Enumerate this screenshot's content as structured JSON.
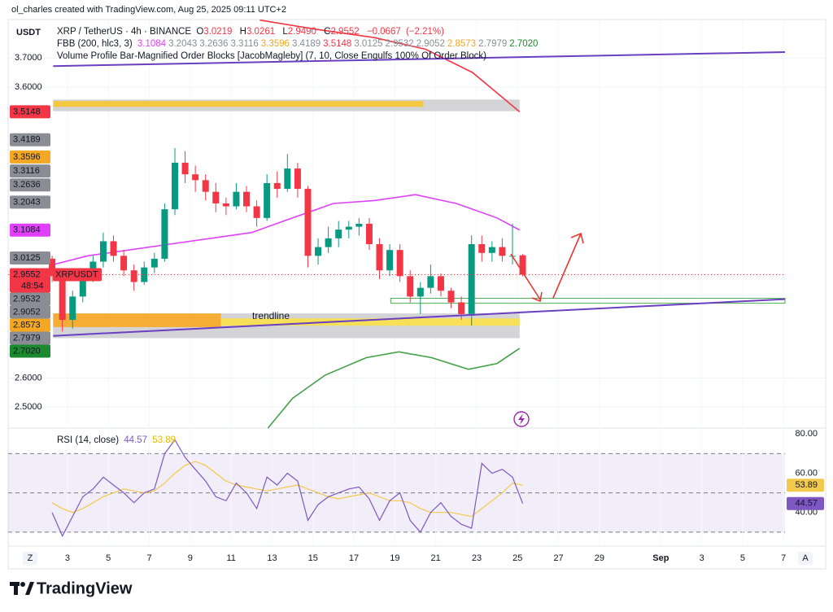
{
  "header": {
    "credit": "ol_charles created with TradingView.com, Aug 25, 2025 09:11 UTC+2",
    "currency": "USDT",
    "symbol_line": "XRP / TetherUS · 4h · BINANCE",
    "ohlc": [
      {
        "prefix": "O",
        "value": 3.0219,
        "label": "3.0219"
      },
      {
        "prefix": "H",
        "value": 3.0261,
        "label": "3.0261"
      },
      {
        "prefix": "L",
        "value": 2.949,
        "label": "2.9490"
      },
      {
        "prefix": "C",
        "value": 2.9552,
        "label": "2.9552"
      }
    ],
    "change": {
      "value": -0.0667,
      "label": "−0.0667"
    },
    "change_pct": {
      "value": -2.21,
      "label": "(−2.21%)"
    },
    "fbb_label": "FBB (200, hlc3, 3)",
    "ob_label": "Volume Profile Bar-Magnified Order Blocks [JacobMagleby] (7, 10, Close Engulfs 100% Of Order Block)",
    "symbol_badge": "XRPUSDT",
    "countdown": "48:54"
  },
  "chart_data": [
    {
      "type": "candlestick",
      "x": [
        2.25,
        2.75,
        3.25,
        3.75,
        4.25,
        4.75,
        5.25,
        5.75,
        6.25,
        6.75,
        7.25,
        7.75,
        8.25,
        8.75,
        9.25,
        9.75,
        10.25,
        10.75,
        11.25,
        11.75,
        12.25,
        12.75,
        13.25,
        13.75,
        14.25,
        14.75,
        15.25,
        15.75,
        16.25,
        16.75,
        17.25,
        17.75,
        18.25,
        18.75,
        19.25,
        19.75,
        20.25,
        20.75,
        21.25,
        21.75,
        22.25,
        22.75,
        23.25,
        23.75,
        24.25,
        24.75,
        25.25
      ],
      "open": [
        3.01,
        2.95,
        2.8,
        2.88,
        2.95,
        3.0,
        3.07,
        3.02,
        2.97,
        2.93,
        2.98,
        3.01,
        3.18,
        3.34,
        3.3,
        3.28,
        3.24,
        3.2,
        3.19,
        3.24,
        3.19,
        3.15,
        3.27,
        3.25,
        3.32,
        3.25,
        3.02,
        3.05,
        3.08,
        3.11,
        3.12,
        3.13,
        3.06,
        2.97,
        3.04,
        2.95,
        2.88,
        2.91,
        2.95,
        2.9,
        2.86,
        2.82,
        3.06,
        3.03,
        3.05,
        3.02,
        3.0219
      ],
      "high": [
        3.02,
        2.96,
        2.9,
        2.97,
        3.02,
        3.1,
        3.09,
        3.04,
        2.99,
        3.0,
        3.03,
        3.2,
        3.39,
        3.38,
        3.33,
        3.3,
        3.27,
        3.22,
        3.27,
        3.26,
        3.21,
        3.3,
        3.31,
        3.37,
        3.34,
        3.26,
        3.08,
        3.12,
        3.14,
        3.14,
        3.15,
        3.15,
        3.08,
        3.06,
        3.06,
        2.97,
        2.93,
        2.99,
        2.96,
        2.91,
        2.88,
        3.09,
        3.09,
        3.07,
        3.08,
        3.13,
        3.0261
      ],
      "low": [
        2.93,
        2.76,
        2.77,
        2.86,
        2.93,
        2.98,
        3.0,
        2.95,
        2.9,
        2.92,
        2.96,
        3.0,
        3.16,
        3.27,
        3.24,
        3.21,
        3.17,
        3.16,
        3.18,
        3.17,
        3.12,
        3.14,
        3.22,
        3.24,
        3.22,
        2.98,
        2.99,
        3.03,
        3.05,
        3.08,
        3.09,
        3.04,
        2.94,
        2.95,
        2.93,
        2.86,
        2.82,
        2.89,
        2.88,
        2.84,
        2.8,
        2.78,
        3.0,
        3.0,
        3.0,
        2.99,
        2.949
      ],
      "close": [
        2.95,
        2.8,
        2.88,
        2.95,
        3.0,
        3.07,
        3.02,
        2.97,
        2.93,
        2.98,
        3.01,
        3.18,
        3.34,
        3.3,
        3.28,
        3.24,
        3.2,
        3.19,
        3.24,
        3.19,
        3.15,
        3.27,
        3.25,
        3.32,
        3.25,
        3.02,
        3.05,
        3.08,
        3.11,
        3.12,
        3.13,
        3.06,
        2.97,
        3.04,
        2.95,
        2.88,
        2.91,
        2.95,
        2.9,
        2.86,
        2.82,
        3.06,
        3.03,
        3.05,
        3.02,
        3.02,
        2.9552
      ],
      "up_color": "#089981",
      "down_color": "#f23645",
      "xlim": [
        0.1,
        38.07
      ],
      "ylim": [
        2.428,
        3.832
      ],
      "yticks": [
        {
          "value": 3.7,
          "label": "3.7000"
        },
        {
          "value": 3.6,
          "label": "3.6000"
        },
        {
          "value": 2.6,
          "label": "2.6000"
        },
        {
          "value": 2.5,
          "label": "2.5000"
        }
      ],
      "grid": true,
      "lines": [
        {
          "color": "#e040fb",
          "x": [
            2.3,
            4,
            6,
            8,
            10,
            12,
            14,
            16,
            18,
            20,
            22,
            24,
            25.1
          ],
          "values": [
            2.99,
            3.02,
            3.04,
            3.06,
            3.08,
            3.1,
            3.15,
            3.2,
            3.21,
            3.23,
            3.2,
            3.15,
            3.1084
          ]
        },
        {
          "color": "#43a047",
          "x": [
            12.8,
            14,
            15.6,
            17.6,
            19.2,
            20.8,
            22.6,
            24,
            25.1
          ],
          "values": [
            2.428,
            2.53,
            2.61,
            2.67,
            2.69,
            2.67,
            2.63,
            2.65,
            2.702
          ]
        },
        {
          "color": "#f23645",
          "x": [
            12.4,
            15,
            18,
            20.5,
            22.8,
            25.1
          ],
          "values": [
            3.83,
            3.8,
            3.77,
            3.73,
            3.65,
            3.5148
          ]
        }
      ],
      "trendlines": [
        {
          "color": "#6a3fc1",
          "x": [
            2.3,
            38.07
          ],
          "values": [
            3.672,
            3.72
          ]
        },
        {
          "color": "#6a3fc1",
          "x": [
            2.3,
            38.07
          ],
          "values": [
            2.745,
            2.871
          ],
          "label": "trendline",
          "label_color": "#f2542d"
        }
      ],
      "zones": [
        {
          "color": "#cfcfd2",
          "x": [
            2.3,
            25.1
          ],
          "values": [
            3.557,
            3.517
          ]
        },
        {
          "color": "#f7c531",
          "x": [
            2.3,
            20.4
          ],
          "values": [
            3.552,
            3.532
          ]
        },
        {
          "color": "#cfcfd2",
          "x": [
            2.3,
            25.1
          ],
          "values": [
            2.822,
            2.737
          ]
        },
        {
          "color": "#f9a825",
          "x": [
            2.3,
            10.5
          ],
          "values": [
            2.822,
            2.775
          ]
        },
        {
          "color": "#fbe04a",
          "x": [
            10.5,
            25.1
          ],
          "values": [
            2.805,
            2.78
          ]
        },
        {
          "color": "#4caf50",
          "x": [
            18.8,
            38.07
          ],
          "values": [
            2.874,
            2.857
          ],
          "outline": true
        }
      ],
      "price_labels": [
        {
          "value": 3.1084,
          "label": "3.1084",
          "color": "#e040fb"
        },
        {
          "value": 3.2043,
          "label": "3.2043",
          "color": "#8a8d96"
        },
        {
          "value": 3.2636,
          "label": "3.2636",
          "color": "#8a8d96"
        },
        {
          "value": 3.3116,
          "label": "3.3116",
          "color": "#8a8d96"
        },
        {
          "value": 3.3596,
          "label": "3.3596",
          "color": "#f5a623"
        },
        {
          "value": 3.4189,
          "label": "3.4189",
          "color": "#8a8d96"
        },
        {
          "value": 3.5148,
          "label": "3.5148",
          "color": "#f23645"
        },
        {
          "value": 3.0125,
          "label": "3.0125",
          "color": "#8a8d96"
        },
        {
          "value": 2.9532,
          "label": "2.9532",
          "color": "#8a8d96"
        },
        {
          "value": 2.9052,
          "label": "2.9052",
          "color": "#8a8d96"
        },
        {
          "value": 2.8573,
          "label": "2.8573",
          "color": "#f5a623"
        },
        {
          "value": 2.7979,
          "label": "2.7979",
          "color": "#8a8d96"
        },
        {
          "value": 2.702,
          "label": "2.7020",
          "color": "#1b8a2e"
        }
      ],
      "last_price": {
        "value": 2.9552,
        "label": "2.9552",
        "color": "#f23645"
      }
    },
    {
      "type": "line",
      "title": "RSI (14, close)",
      "x": [
        2.25,
        2.75,
        3.25,
        3.75,
        4.25,
        4.75,
        5.25,
        5.75,
        6.25,
        6.75,
        7.25,
        7.75,
        8.25,
        8.75,
        9.25,
        9.75,
        10.25,
        10.75,
        11.25,
        11.75,
        12.25,
        12.75,
        13.25,
        13.75,
        14.25,
        14.75,
        15.25,
        15.75,
        16.25,
        16.75,
        17.25,
        17.75,
        18.25,
        18.75,
        19.25,
        19.75,
        20.25,
        20.75,
        21.25,
        21.75,
        22.25,
        22.75,
        23.25,
        23.75,
        24.25,
        24.75,
        25.25
      ],
      "series": [
        {
          "color": "#7e57c2",
          "values": [
            40,
            28,
            38,
            48,
            52,
            58,
            54,
            50,
            45,
            50,
            52,
            70,
            77,
            68,
            62,
            56,
            48,
            46,
            55,
            50,
            42,
            58,
            54,
            60,
            56,
            36,
            44,
            48,
            50,
            52,
            53,
            47,
            36,
            46,
            50,
            36,
            30,
            40,
            45,
            38,
            34,
            32,
            65,
            60,
            62,
            58,
            44.57
          ]
        },
        {
          "color": "#f2c94c",
          "values": [
            45,
            42,
            40,
            42,
            45,
            48,
            50,
            52,
            51,
            50,
            51,
            55,
            60,
            64,
            66,
            64,
            60,
            56,
            54,
            53,
            52,
            51,
            52,
            53,
            54,
            52,
            50,
            48,
            47,
            48,
            49,
            50,
            48,
            46,
            46,
            45,
            42,
            40,
            40,
            40,
            39,
            38,
            42,
            46,
            50,
            55,
            53.89
          ]
        }
      ],
      "xlim": [
        0.1,
        38.07
      ],
      "ylim": [
        22.9,
        83
      ],
      "yticks": [
        {
          "value": 80,
          "label": "80.00"
        },
        {
          "value": 60,
          "label": "60.00"
        },
        {
          "value": 40,
          "label": "40.00"
        }
      ],
      "levels": [
        70,
        50,
        30
      ],
      "band_color": "#7e57c2",
      "xticks": [
        3,
        5,
        7,
        9,
        11,
        13,
        15,
        17,
        19,
        21,
        23,
        25,
        27,
        29,
        {
          "value": 32,
          "label": "Sep"
        },
        {
          "value": 34,
          "label": "3"
        },
        {
          "value": 36,
          "label": "5"
        },
        {
          "value": 38,
          "label": "7"
        }
      ]
    }
  ],
  "footer": {
    "logo": "TradingView",
    "buttons": [
      "Z",
      "A"
    ]
  }
}
